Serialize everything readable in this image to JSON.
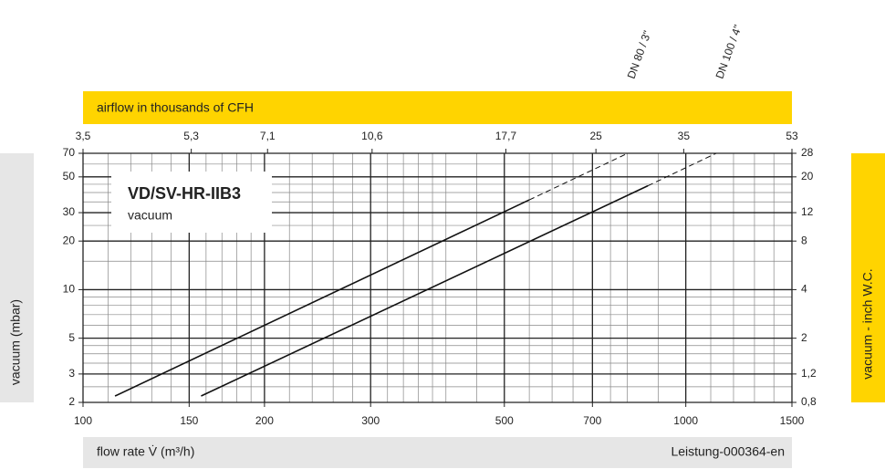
{
  "chart_data": {
    "type": "line",
    "log_x": true,
    "log_y": true,
    "grid": true,
    "top_axis_label": "airflow in thousands of CFH",
    "xlabel": "flow rate V̇ (m³/h)",
    "ylabel": "vacuum (mbar)",
    "y2label": "vacuum - inch W.C.",
    "footer": "Leistung-000364-en",
    "legend_title": "VD/SV-HR-IIB3",
    "legend_subtitle": "vacuum",
    "xlim": [
      100,
      1500
    ],
    "xticks": [
      100,
      150,
      200,
      300,
      500,
      700,
      1000,
      1500
    ],
    "x2lim": [
      3.5,
      53
    ],
    "x2ticks": [
      {
        "value": 3.5,
        "label": "3,5"
      },
      {
        "value": 5.3,
        "label": "5,3"
      },
      {
        "value": 7.1,
        "label": "7,1"
      },
      {
        "value": 10.6,
        "label": "10,6"
      },
      {
        "value": 17.7,
        "label": "17,7"
      },
      25,
      35,
      53
    ],
    "ylim": [
      2,
      70
    ],
    "yticks": [
      2,
      3,
      5,
      10,
      20,
      30,
      50,
      70
    ],
    "y2lim": [
      0.8,
      28
    ],
    "y2ticks": [
      {
        "value": 0.8,
        "label": "0,8"
      },
      {
        "value": 1.2,
        "label": "1,2"
      },
      2,
      4,
      8,
      12,
      20,
      28
    ],
    "x_minor_grid": [
      110,
      120,
      130,
      140,
      160,
      170,
      180,
      190,
      220,
      240,
      260,
      280,
      320,
      340,
      360,
      380,
      400,
      450,
      550,
      600,
      650,
      750,
      800,
      900,
      1100,
      1200,
      1300,
      1400
    ],
    "y_minor_grid": [
      2.5,
      3.5,
      4,
      4.5,
      6,
      7,
      8,
      9,
      15,
      25,
      35,
      40,
      45,
      60
    ],
    "series": [
      {
        "name": "DN 80 / 3\"",
        "color": "#111111",
        "x": [
          113,
          550,
          801
        ],
        "values": [
          2.19,
          36,
          70
        ],
        "dashed_after_index": 1
      },
      {
        "name": "DN 100 / 4\"",
        "color": "#111111",
        "x": [
          157,
          865,
          1123
        ],
        "values": [
          2.19,
          44,
          70
        ],
        "dashed_after_index": 1
      }
    ]
  }
}
